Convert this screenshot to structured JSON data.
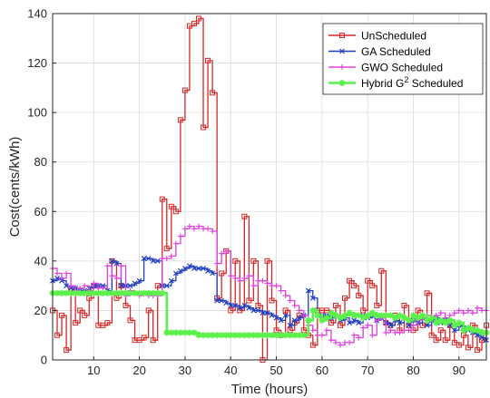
{
  "chart_data": {
    "type": "line",
    "xlabel": "Time (hours)",
    "ylabel": "Cost(cents/kWh)",
    "xlim": [
      1,
      96
    ],
    "ylim": [
      0,
      140
    ],
    "xticks": [
      10,
      20,
      30,
      40,
      50,
      60,
      70,
      80,
      90
    ],
    "yticks": [
      0,
      20,
      40,
      60,
      80,
      100,
      120,
      140
    ],
    "grid": true,
    "step": true,
    "legend_position": "top-right",
    "x": [
      1,
      2,
      3,
      4,
      5,
      6,
      7,
      8,
      9,
      10,
      11,
      12,
      13,
      14,
      15,
      16,
      17,
      18,
      19,
      20,
      21,
      22,
      23,
      24,
      25,
      26,
      27,
      28,
      29,
      30,
      31,
      32,
      33,
      34,
      35,
      36,
      37,
      38,
      39,
      40,
      41,
      42,
      43,
      44,
      45,
      46,
      47,
      48,
      49,
      50,
      51,
      52,
      53,
      54,
      55,
      56,
      57,
      58,
      59,
      60,
      61,
      62,
      63,
      64,
      65,
      66,
      67,
      68,
      69,
      70,
      71,
      72,
      73,
      74,
      75,
      76,
      77,
      78,
      79,
      80,
      81,
      82,
      83,
      84,
      85,
      86,
      87,
      88,
      89,
      90,
      91,
      92,
      93,
      94,
      95,
      96
    ],
    "series": [
      {
        "name": "UnScheduled",
        "color": "#d62728",
        "marker": "square",
        "values": [
          20,
          10,
          18,
          4,
          28,
          15,
          20,
          18,
          25,
          30,
          14,
          14,
          15,
          40,
          25,
          30,
          22,
          16,
          8,
          8,
          9,
          20,
          8,
          30,
          65,
          45,
          62,
          60,
          97,
          109,
          135,
          136,
          138,
          94,
          121,
          108,
          25,
          35,
          44,
          20,
          40,
          20,
          58,
          24,
          40,
          22,
          0,
          40,
          24,
          12,
          10,
          20,
          12,
          15,
          18,
          12,
          10,
          6,
          20,
          20,
          20,
          15,
          22,
          14,
          25,
          32,
          30,
          26,
          20,
          32,
          30,
          22,
          36,
          15,
          14,
          18,
          12,
          22,
          14,
          12,
          20,
          14,
          27,
          10,
          8,
          12,
          8,
          14,
          7,
          6,
          10,
          5,
          14,
          4,
          8,
          14
        ],
        "label_text": "UnScheduled"
      },
      {
        "name": "GA Scheduled",
        "color": "#1f3fbf",
        "marker": "x",
        "values": [
          32,
          33,
          32,
          30,
          29,
          29,
          28,
          28,
          29,
          30,
          30,
          30,
          28,
          40,
          39,
          30,
          30,
          30,
          31,
          32,
          41,
          41,
          40,
          40,
          30,
          30,
          32,
          35,
          36,
          37,
          38,
          37,
          37,
          37,
          36,
          35,
          24,
          24,
          23,
          22,
          22,
          21,
          22,
          21,
          20,
          20,
          19,
          19,
          18,
          17,
          16,
          18,
          14,
          16,
          17,
          18,
          28,
          25,
          18,
          18,
          18,
          17,
          18,
          16,
          17,
          15,
          16,
          15,
          18,
          17,
          18,
          16,
          17,
          15,
          14,
          16,
          15,
          17,
          14,
          16,
          15,
          17,
          14,
          16,
          17,
          15,
          16,
          14,
          12,
          14,
          13,
          12,
          11,
          10,
          9,
          8
        ],
        "label_text": "GA Scheduled"
      },
      {
        "name": "GWO Scheduled",
        "color": "#e040e0",
        "marker": "plus",
        "values": [
          37,
          35,
          33,
          35,
          30,
          28,
          29,
          30,
          28,
          31,
          29,
          29,
          38,
          34,
          33,
          38,
          26,
          28,
          27,
          26,
          27,
          26,
          26,
          26,
          41,
          41,
          42,
          47,
          50,
          53,
          54,
          53,
          54,
          53,
          53,
          52,
          39,
          43,
          44,
          34,
          33,
          32,
          33,
          34,
          30,
          32,
          32,
          31,
          30,
          30,
          28,
          26,
          24,
          22,
          20,
          18,
          14,
          12,
          10,
          10,
          12,
          8,
          7,
          6,
          7,
          7,
          10,
          9,
          13,
          14,
          10,
          16,
          17,
          11,
          12,
          11,
          11,
          12,
          12,
          14,
          16,
          18,
          18,
          17,
          18,
          19,
          17,
          18,
          19,
          20,
          19,
          20,
          19,
          21,
          20,
          20
        ],
        "label_text": "GWO Scheduled"
      },
      {
        "name": "Hybrid G² Scheduled",
        "color": "#5cf04a",
        "marker": "star",
        "values": [
          27,
          27,
          27,
          27,
          27,
          27,
          27,
          27,
          27,
          27,
          27,
          27,
          27,
          27,
          27,
          27,
          27,
          27,
          27,
          27,
          27,
          27,
          27,
          27,
          27,
          11,
          11,
          11,
          11,
          11,
          11,
          11,
          10,
          10,
          10,
          10,
          10,
          10,
          10,
          10,
          10,
          10,
          10,
          10,
          10,
          10,
          10,
          10,
          10,
          10,
          10,
          10,
          10,
          10,
          10,
          10,
          16,
          20,
          18,
          16,
          17,
          19,
          18,
          17,
          18,
          19,
          18,
          18,
          17,
          18,
          19,
          18,
          18,
          18,
          18,
          17,
          18,
          17,
          16,
          18,
          17,
          18,
          16,
          17,
          15,
          16,
          15,
          16,
          14,
          15,
          12,
          13,
          12,
          12,
          11,
          11
        ],
        "label_text": "Hybrid G",
        "label_sup": "2",
        "label_suffix": " Scheduled"
      }
    ]
  }
}
